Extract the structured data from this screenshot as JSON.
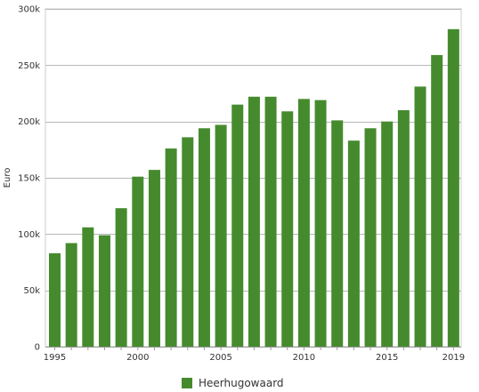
{
  "chart_data": {
    "type": "bar",
    "x": [
      1995,
      1996,
      1997,
      1998,
      1999,
      2000,
      2001,
      2002,
      2003,
      2004,
      2005,
      2006,
      2007,
      2008,
      2009,
      2010,
      2011,
      2012,
      2013,
      2014,
      2015,
      2016,
      2017,
      2018,
      2019
    ],
    "series": [
      {
        "name": "Heerhugowaard",
        "color": "#458b2e",
        "values": [
          83000,
          92000,
          106000,
          99000,
          123000,
          151000,
          157000,
          176000,
          186000,
          194000,
          197000,
          215000,
          222000,
          222000,
          209000,
          220000,
          219000,
          201000,
          183000,
          194000,
          200000,
          210000,
          231000,
          259000,
          282000
        ]
      }
    ],
    "ylabel": "Euro",
    "ylim": [
      0,
      300000
    ],
    "yticks": [
      0,
      50000,
      100000,
      150000,
      200000,
      250000,
      300000
    ],
    "ytick_labels": [
      "0",
      "50k",
      "100k",
      "150k",
      "200k",
      "250k",
      "300k"
    ],
    "xticks": [
      1995,
      2000,
      2005,
      2010,
      2015,
      2019
    ],
    "xtick_labels": [
      "1995",
      "2000",
      "2005",
      "2010",
      "2015",
      "2019"
    ],
    "grid": true,
    "legend_position": "bottom-center"
  },
  "legend": {
    "label": "Heerhugowaard",
    "color": "#458b2e"
  }
}
